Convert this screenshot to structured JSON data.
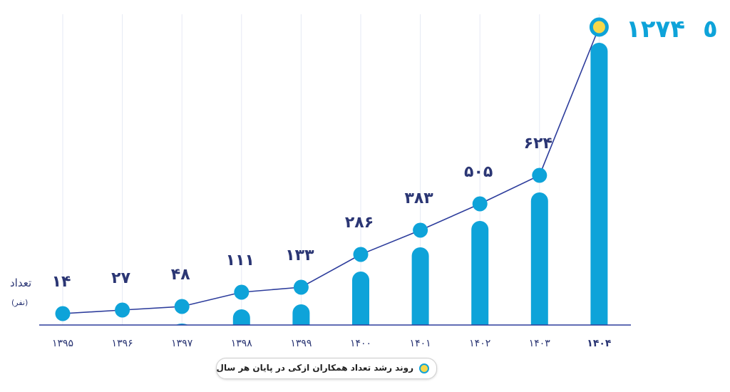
{
  "chart_data": {
    "type": "bar",
    "categories": [
      "۱۳۹۵",
      "۱۳۹۶",
      "۱۳۹۷",
      "۱۳۹۸",
      "۱۳۹۹",
      "۱۴۰۰",
      "۱۴۰۱",
      "۱۴۰۲",
      "۱۴۰۳",
      "۱۴۰۴"
    ],
    "values": [
      14,
      27,
      48,
      111,
      133,
      286,
      383,
      505,
      624,
      1274
    ],
    "value_labels": [
      "۱۴",
      "۲۷",
      "۴۸",
      "۱۱۱",
      "۱۳۳",
      "۲۸۶",
      "۳۸۳",
      "۵۰۵",
      "۶۲۴",
      "۱۲۷۴"
    ],
    "ylabel": "تعداد",
    "yunit": "(نفر)",
    "legend": "روند رشد تعداد همکاران ازکی در پایان هر سال",
    "highlight_label": "۱۲۷۴",
    "highlight_mark": "٥",
    "series_line": true,
    "colors": {
      "bar": "#0ea3d9",
      "line": "#2d3d9c",
      "text": "#2b3674",
      "highlight": "#f5d84a",
      "grid": "#e6eaf4"
    }
  }
}
